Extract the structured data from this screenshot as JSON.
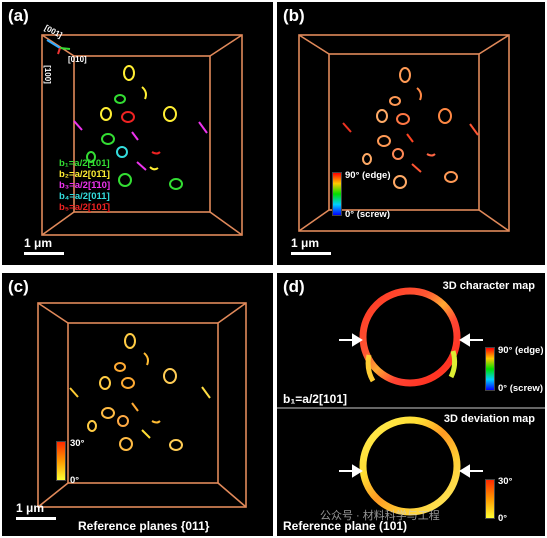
{
  "panels": {
    "a": {
      "label": "(a)",
      "scale": "1 μm",
      "axis_001": "[001]",
      "axis_010": "[010]",
      "axis_100": "[100]",
      "legend": [
        {
          "text": "b₁=a/2[101]",
          "color": "#33dd33"
        },
        {
          "text": "b₂=a/2[01̄1]",
          "color": "#ffee33"
        },
        {
          "text": "b₃=a/2[1̄10]",
          "color": "#ee33ee"
        },
        {
          "text": "b₄=a/2[011]",
          "color": "#33dddd"
        },
        {
          "text": "b₅=a/2[101̄]",
          "color": "#ee2222"
        }
      ]
    },
    "b": {
      "label": "(b)",
      "scale": "1 μm",
      "cbar_top": "90° (edge)",
      "cbar_bottom": "0° (screw)"
    },
    "c": {
      "label": "(c)",
      "scale": "1 μm",
      "cbar_top": "30°",
      "cbar_bottom": "0°",
      "caption": "Reference planes {011}"
    },
    "d": {
      "label": "(d)",
      "top_title": "3D character map",
      "top_cbar_top": "90° (edge)",
      "top_cbar_bottom": "0° (screw)",
      "top_burgers": "b₁=a/2[101]",
      "bottom_title": "3D deviation map",
      "bottom_cbar_top": "30°",
      "bottom_cbar_bottom": "0°",
      "bottom_caption": "Reference plane (101)"
    }
  },
  "watermark": "公众号 · 材料科学与工程",
  "colors": {
    "box": "#e0895a",
    "background": "#000000",
    "arrow": "#ffffff"
  }
}
